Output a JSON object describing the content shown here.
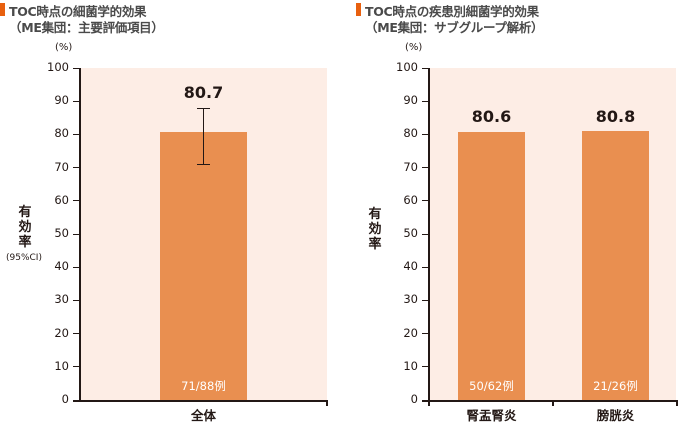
{
  "colors": {
    "accent": "#e8600f",
    "bar": "#e98f50",
    "plot_bg": "#fdede5",
    "axis": "#231815"
  },
  "left": {
    "title_line1": "TOC時点の細菌学的効果",
    "title_line2": "（ME集団：主要評価項目）",
    "unit": "(%)",
    "ylabel": [
      "有",
      "効",
      "率"
    ],
    "ylabel_sub": "(95%CI)",
    "yticks": [
      "100",
      "90",
      "80",
      "70",
      "60",
      "50",
      "40",
      "30",
      "20",
      "10",
      "0"
    ],
    "bars": [
      {
        "category": "全体",
        "value_label": "80.7",
        "n_label": "71/88例"
      }
    ]
  },
  "right": {
    "title_line1": "TOC時点の疾患別細菌学的効果",
    "title_line2": "（ME集団：サブグループ解析）",
    "unit": "(%)",
    "ylabel": [
      "有",
      "効",
      "率"
    ],
    "yticks": [
      "100",
      "90",
      "80",
      "70",
      "60",
      "50",
      "40",
      "30",
      "20",
      "10",
      "0"
    ],
    "bars": [
      {
        "category": "腎盂腎炎",
        "value_label": "80.6",
        "n_label": "50/62例"
      },
      {
        "category": "膀胱炎",
        "value_label": "80.8",
        "n_label": "21/26例"
      }
    ]
  },
  "chart_data": [
    {
      "type": "bar",
      "title": "TOC時点の細菌学的効果（ME集団：主要評価項目）",
      "categories": [
        "全体"
      ],
      "values": [
        80.7
      ],
      "error_bars": [
        {
          "lower": 70.9,
          "upper": 88.0
        }
      ],
      "annotations": [
        "71/88例"
      ],
      "xlabel": "",
      "ylabel": "有効率 (95%CI) (%)",
      "ylim": [
        0,
        100
      ],
      "yticks": [
        0,
        10,
        20,
        30,
        40,
        50,
        60,
        70,
        80,
        90,
        100
      ],
      "grid": false,
      "legend": null
    },
    {
      "type": "bar",
      "title": "TOC時点の疾患別細菌学的効果（ME集団：サブグループ解析）",
      "categories": [
        "腎盂腎炎",
        "膀胱炎"
      ],
      "values": [
        80.6,
        80.8
      ],
      "annotations": [
        "50/62例",
        "21/26例"
      ],
      "xlabel": "",
      "ylabel": "有効率 (%)",
      "ylim": [
        0,
        100
      ],
      "yticks": [
        0,
        10,
        20,
        30,
        40,
        50,
        60,
        70,
        80,
        90,
        100
      ],
      "grid": false,
      "legend": null
    }
  ]
}
